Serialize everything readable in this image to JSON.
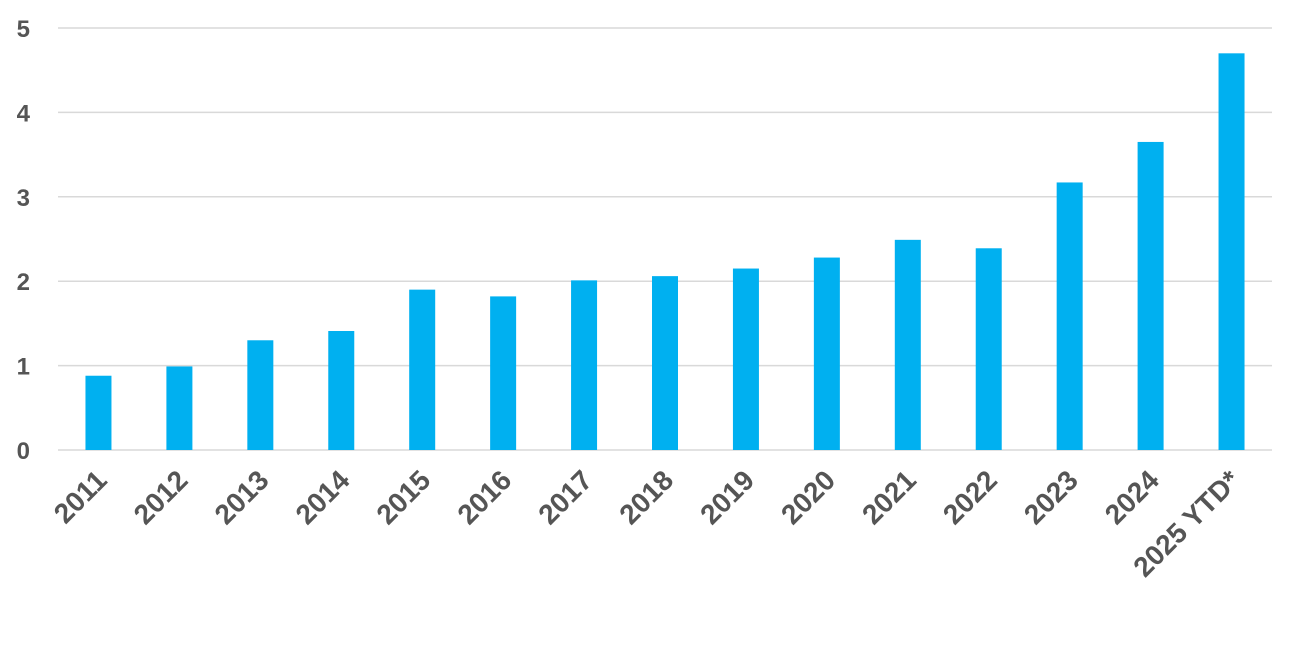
{
  "chart_data": {
    "type": "bar",
    "title": "",
    "xlabel": "",
    "ylabel": "",
    "categories": [
      "2011",
      "2012",
      "2013",
      "2014",
      "2015",
      "2016",
      "2017",
      "2018",
      "2019",
      "2020",
      "2021",
      "2022",
      "2023",
      "2024",
      "2025 YTD*"
    ],
    "values": [
      0.88,
      0.99,
      1.3,
      1.41,
      1.9,
      1.82,
      2.01,
      2.06,
      2.15,
      2.28,
      2.49,
      2.39,
      3.17,
      3.65,
      4.7
    ],
    "ylim": [
      0,
      5
    ],
    "yticks": [
      "0",
      "1",
      "2",
      "3",
      "4",
      "5"
    ],
    "grid": true,
    "legend": "none",
    "bar_color": "#00b0f0"
  }
}
